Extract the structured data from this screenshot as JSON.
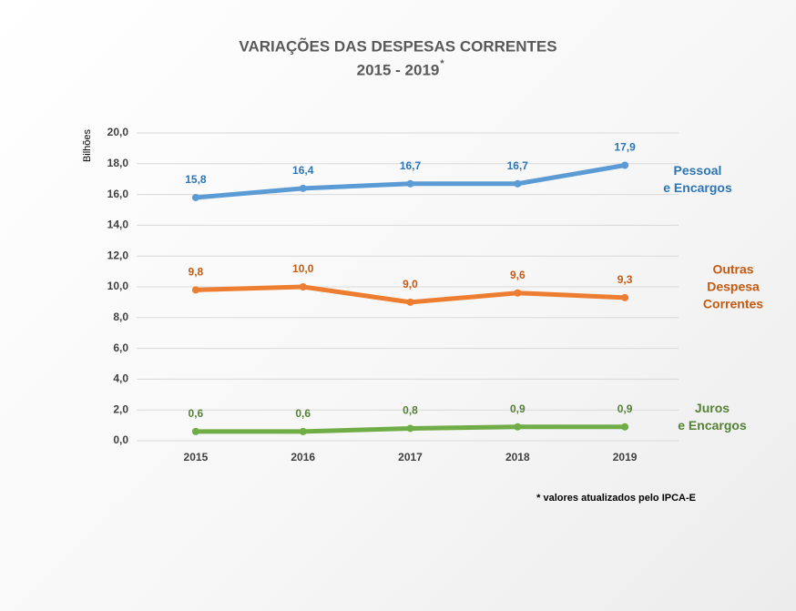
{
  "chart_data": {
    "type": "line",
    "title": "VARIAÇÕES DAS DESPESAS CORRENTES",
    "subtitle": "2015 - 2019",
    "subtitle_marker": "*",
    "y_axis_label": "Bilhões",
    "note": "* valores atualizados pelo IPCA-E",
    "categories": [
      "2015",
      "2016",
      "2017",
      "2018",
      "2019"
    ],
    "series": [
      {
        "name": "Pessoal\ne Encargos",
        "color": "#5b9bd5",
        "label_color": "#2e75b6",
        "values": [
          15.8,
          16.4,
          16.7,
          16.7,
          17.9
        ],
        "value_labels": [
          "15,8",
          "16,4",
          "16,7",
          "16,7",
          "17,9"
        ]
      },
      {
        "name": "Outras\nDespesa Correntes",
        "color": "#ed7d31",
        "label_color": "#c55a11",
        "values": [
          9.8,
          10.0,
          9.0,
          9.6,
          9.3
        ],
        "value_labels": [
          "9,8",
          "10,0",
          "9,0",
          "9,6",
          "9,3"
        ]
      },
      {
        "name": "Juros\ne Encargos",
        "color": "#70ad47",
        "label_color": "#548235",
        "values": [
          0.6,
          0.6,
          0.8,
          0.9,
          0.9
        ],
        "value_labels": [
          "0,6",
          "0,6",
          "0,8",
          "0,9",
          "0,9"
        ]
      }
    ],
    "ylim": [
      0,
      20
    ],
    "yticks": [
      {
        "value": 0,
        "label": "0,0"
      },
      {
        "value": 2,
        "label": "2,0"
      },
      {
        "value": 4,
        "label": "4,0"
      },
      {
        "value": 6,
        "label": "6,0"
      },
      {
        "value": 8,
        "label": "8,0"
      },
      {
        "value": 10,
        "label": "10,0"
      },
      {
        "value": 12,
        "label": "12,0"
      },
      {
        "value": 14,
        "label": "14,0"
      },
      {
        "value": 16,
        "label": "16,0"
      },
      {
        "value": 18,
        "label": "18,0"
      },
      {
        "value": 20,
        "label": "20,0"
      }
    ],
    "grid": true
  }
}
